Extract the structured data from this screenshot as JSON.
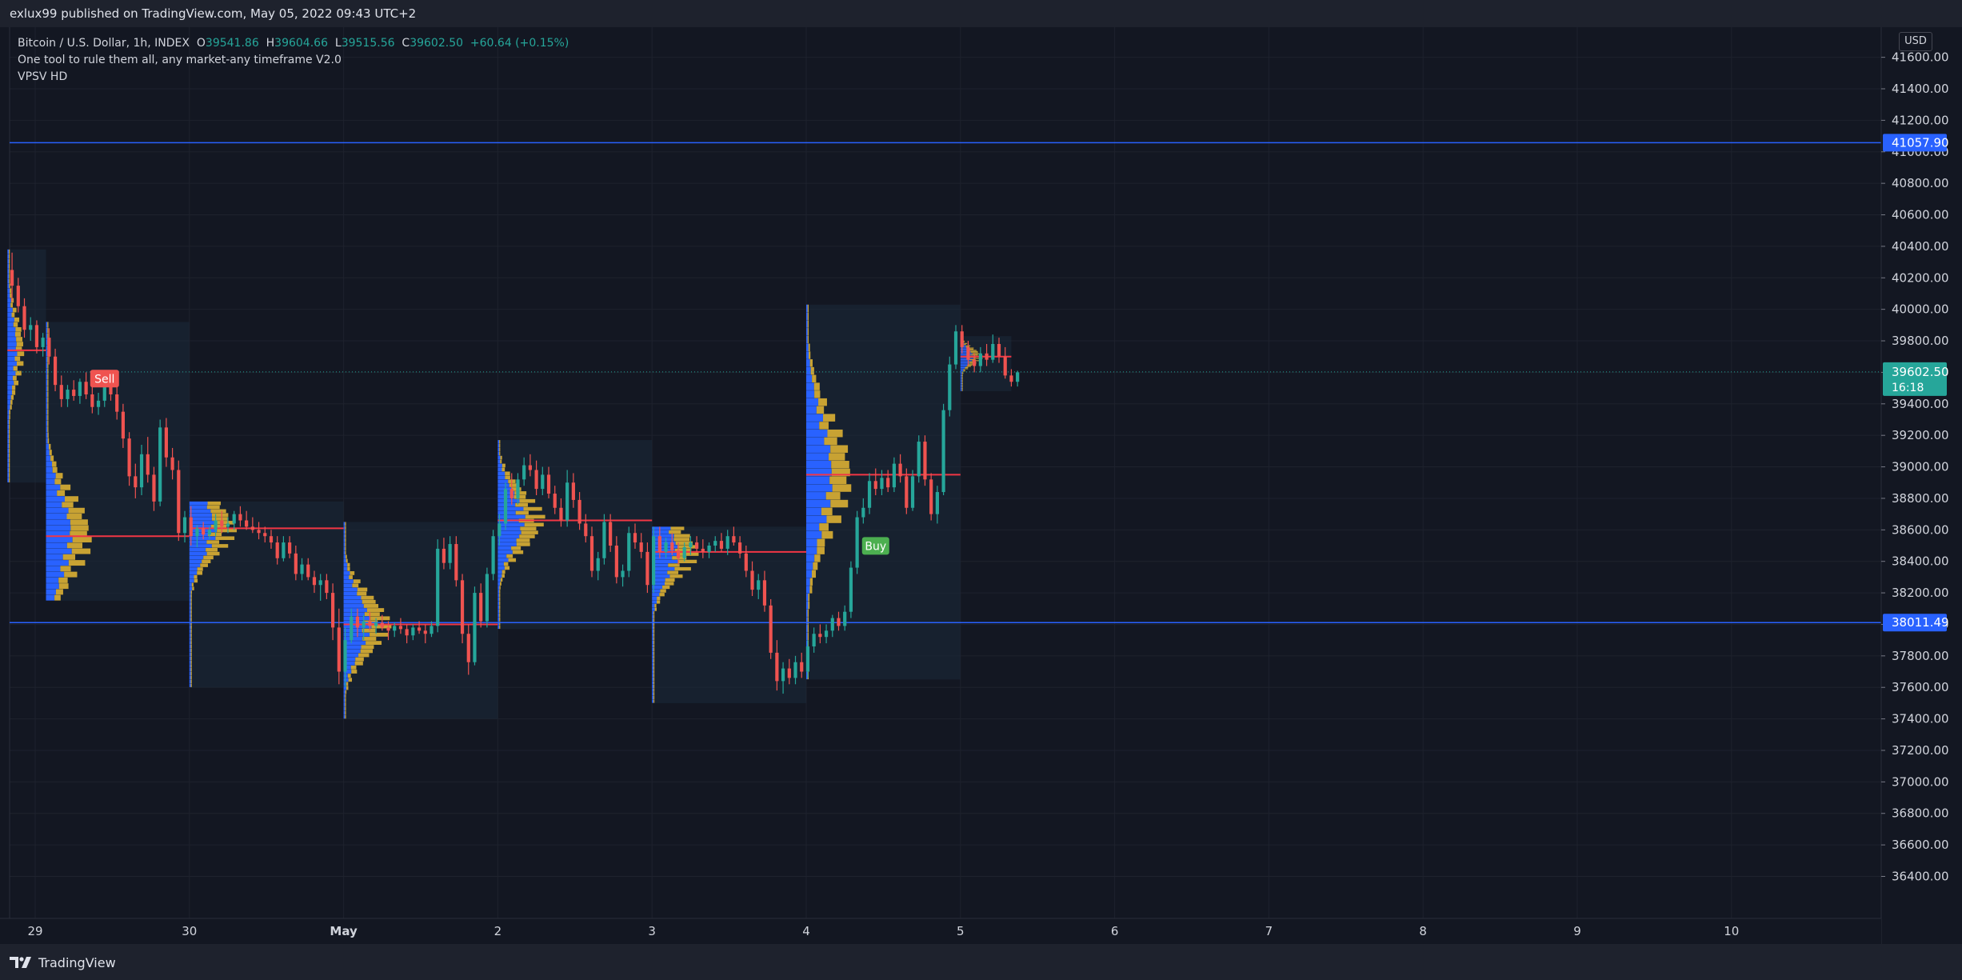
{
  "header": {
    "published_text": "exlux99 published on TradingView.com, May 05, 2022 09:43 UTC+2"
  },
  "footer": {
    "brand": "TradingView"
  },
  "currency_button": "USD",
  "legend": {
    "symbol": "Bitcoin / U.S. Dollar, 1h, INDEX",
    "o_label": "O",
    "o_value": "39541.86",
    "h_label": "H",
    "h_value": "39604.66",
    "l_label": "L",
    "l_value": "39515.56",
    "c_label": "C",
    "c_value": "39602.50",
    "change": "+60.64 (+0.15%)",
    "indicator_1": "One tool to rule them all, any market-any timeframe V2.0",
    "indicator_2": "VPSV HD"
  },
  "colors": {
    "background": "#131722",
    "grid": "#1e222d",
    "up": "#26a69a",
    "down": "#ef5350",
    "level_line": "#2962ff",
    "poc_line": "#f23645",
    "profile_box": "#1c2a3a",
    "volume_up": "#2962ff",
    "volume_down": "#c8a233",
    "buy_badge": "#4caf50",
    "sell_badge": "#ef5350",
    "last_price_badge": "#26a69a"
  },
  "chart_data": {
    "type": "candlestick",
    "title": "Bitcoin / U.S. Dollar, 1h, INDEX",
    "ylim": [
      36300,
      41800
    ],
    "y_ticks": [
      "41600.00",
      "41400.00",
      "41200.00",
      "41000.00",
      "40800.00",
      "40600.00",
      "40400.00",
      "40200.00",
      "40000.00",
      "39800.00",
      "39600.00",
      "39400.00",
      "39200.00",
      "39000.00",
      "38800.00",
      "38600.00",
      "38400.00",
      "38200.00",
      "38000.00",
      "37800.00",
      "37600.00",
      "37400.00",
      "37200.00",
      "37000.00",
      "36800.00",
      "36600.00",
      "36400.00"
    ],
    "x_ticks": [
      {
        "label": "29",
        "day": 0
      },
      {
        "label": "30",
        "day": 1
      },
      {
        "label": "May",
        "day": 2
      },
      {
        "label": "2",
        "day": 3
      },
      {
        "label": "3",
        "day": 4
      },
      {
        "label": "4",
        "day": 5
      },
      {
        "label": "5",
        "day": 6
      },
      {
        "label": "6",
        "day": 7
      },
      {
        "label": "7",
        "day": 8
      },
      {
        "label": "8",
        "day": 9
      },
      {
        "label": "9",
        "day": 10
      },
      {
        "label": "10",
        "day": 11
      }
    ],
    "price_levels": [
      {
        "value": 41057.9,
        "label": "41057.90"
      },
      {
        "value": 38011.49,
        "label": "38011.49"
      }
    ],
    "last_price": {
      "value": 39602.5,
      "label": "39602.50",
      "countdown": "16:18"
    },
    "signals": [
      {
        "type": "Sell",
        "label": "Sell",
        "day": 0.45,
        "price": 39550
      },
      {
        "type": "Buy",
        "label": "Buy",
        "day": 5.45,
        "price": 38620
      }
    ],
    "sessions": [
      {
        "start": -0.18,
        "end": 0.07,
        "low": 38900,
        "high": 40380,
        "poc": 39740
      },
      {
        "start": 0.07,
        "end": 1.0,
        "low": 38150,
        "high": 39920,
        "poc": 38560
      },
      {
        "start": 1.0,
        "end": 2.0,
        "low": 37600,
        "high": 38780,
        "poc": 38610
      },
      {
        "start": 2.0,
        "end": 3.0,
        "low": 37400,
        "high": 38650,
        "poc": 38000
      },
      {
        "start": 3.0,
        "end": 4.0,
        "low": 37970,
        "high": 39170,
        "poc": 38660
      },
      {
        "start": 4.0,
        "end": 5.0,
        "low": 37500,
        "high": 38620,
        "poc": 38460
      },
      {
        "start": 5.0,
        "end": 6.0,
        "low": 37650,
        "high": 40030,
        "poc": 38950
      },
      {
        "start": 6.0,
        "end": 6.33,
        "low": 39480,
        "high": 39830,
        "poc": 39700
      }
    ],
    "candles": [
      [
        -0.15,
        40250,
        40360,
        40050,
        40150
      ],
      [
        -0.11,
        40150,
        40200,
        39980,
        40020
      ],
      [
        -0.07,
        40020,
        40070,
        39820,
        39870
      ],
      [
        -0.03,
        39870,
        39950,
        39800,
        39900
      ],
      [
        0.01,
        39900,
        39930,
        39720,
        39760
      ],
      [
        0.05,
        39760,
        39850,
        39700,
        39820
      ],
      [
        0.09,
        39820,
        39880,
        39650,
        39700
      ],
      [
        0.13,
        39700,
        39750,
        39480,
        39520
      ],
      [
        0.17,
        39520,
        39580,
        39380,
        39430
      ],
      [
        0.21,
        39430,
        39520,
        39380,
        39490
      ],
      [
        0.25,
        39490,
        39550,
        39420,
        39450
      ],
      [
        0.29,
        39450,
        39560,
        39400,
        39540
      ],
      [
        0.33,
        39540,
        39600,
        39430,
        39460
      ],
      [
        0.37,
        39460,
        39520,
        39340,
        39380
      ],
      [
        0.41,
        39380,
        39470,
        39330,
        39420
      ],
      [
        0.45,
        39420,
        39600,
        39380,
        39550
      ],
      [
        0.49,
        39550,
        39600,
        39420,
        39460
      ],
      [
        0.53,
        39460,
        39520,
        39300,
        39350
      ],
      [
        0.57,
        39350,
        39400,
        39120,
        39180
      ],
      [
        0.61,
        39180,
        39220,
        38880,
        38940
      ],
      [
        0.65,
        38940,
        39020,
        38800,
        38870
      ],
      [
        0.69,
        38870,
        39140,
        38820,
        39080
      ],
      [
        0.73,
        39080,
        39190,
        38900,
        38950
      ],
      [
        0.77,
        38950,
        39000,
        38720,
        38780
      ],
      [
        0.81,
        38780,
        39300,
        38750,
        39250
      ],
      [
        0.85,
        39250,
        39310,
        39000,
        39060
      ],
      [
        0.89,
        39060,
        39120,
        38920,
        38980
      ],
      [
        0.93,
        38980,
        39040,
        38530,
        38580
      ],
      [
        0.97,
        38580,
        38720,
        38520,
        38680
      ],
      [
        1.01,
        38680,
        38750,
        38500,
        38560
      ],
      [
        1.05,
        38560,
        38630,
        38490,
        38610
      ],
      [
        1.09,
        38610,
        38650,
        38540,
        38570
      ],
      [
        1.13,
        38570,
        38620,
        38540,
        38600
      ],
      [
        1.17,
        38600,
        38700,
        38560,
        38660
      ],
      [
        1.21,
        38660,
        38720,
        38580,
        38620
      ],
      [
        1.25,
        38620,
        38680,
        38580,
        38640
      ],
      [
        1.29,
        38640,
        38720,
        38600,
        38700
      ],
      [
        1.33,
        38700,
        38750,
        38620,
        38660
      ],
      [
        1.37,
        38660,
        38720,
        38600,
        38620
      ],
      [
        1.41,
        38620,
        38680,
        38580,
        38600
      ],
      [
        1.45,
        38600,
        38650,
        38540,
        38580
      ],
      [
        1.49,
        38580,
        38620,
        38520,
        38560
      ],
      [
        1.53,
        38560,
        38600,
        38480,
        38520
      ],
      [
        1.57,
        38520,
        38560,
        38380,
        38420
      ],
      [
        1.61,
        38420,
        38560,
        38400,
        38520
      ],
      [
        1.65,
        38520,
        38560,
        38420,
        38450
      ],
      [
        1.69,
        38450,
        38500,
        38280,
        38320
      ],
      [
        1.73,
        38320,
        38420,
        38280,
        38380
      ],
      [
        1.77,
        38380,
        38420,
        38280,
        38300
      ],
      [
        1.81,
        38300,
        38340,
        38200,
        38250
      ],
      [
        1.85,
        38250,
        38320,
        38150,
        38280
      ],
      [
        1.89,
        38280,
        38320,
        38160,
        38200
      ],
      [
        1.93,
        38200,
        38260,
        37900,
        37980
      ],
      [
        1.97,
        37980,
        38100,
        37620,
        37700
      ],
      [
        2.01,
        37700,
        37980,
        37600,
        37900
      ],
      [
        2.05,
        37900,
        38100,
        37880,
        38050
      ],
      [
        2.09,
        38050,
        38100,
        37920,
        37980
      ],
      [
        2.13,
        37980,
        38060,
        37900,
        38020
      ],
      [
        2.17,
        38020,
        38080,
        37960,
        37990
      ],
      [
        2.21,
        37990,
        38040,
        37940,
        38010
      ],
      [
        2.25,
        38010,
        38060,
        37960,
        37980
      ],
      [
        2.29,
        37980,
        38020,
        37900,
        37960
      ],
      [
        2.33,
        37960,
        38010,
        37920,
        37990
      ],
      [
        2.37,
        37990,
        38040,
        37940,
        37970
      ],
      [
        2.41,
        37970,
        38000,
        37880,
        37930
      ],
      [
        2.45,
        37930,
        38000,
        37900,
        37980
      ],
      [
        2.49,
        37980,
        38020,
        37940,
        37960
      ],
      [
        2.53,
        37960,
        38000,
        37880,
        37940
      ],
      [
        2.57,
        37940,
        38020,
        37920,
        37990
      ],
      [
        2.61,
        37990,
        38540,
        37950,
        38480
      ],
      [
        2.65,
        38480,
        38550,
        38350,
        38390
      ],
      [
        2.69,
        38390,
        38560,
        38350,
        38510
      ],
      [
        2.73,
        38510,
        38560,
        38240,
        38280
      ],
      [
        2.77,
        38280,
        38320,
        37880,
        37940
      ],
      [
        2.81,
        37940,
        38000,
        37680,
        37760
      ],
      [
        2.85,
        37760,
        38240,
        37740,
        38200
      ],
      [
        2.89,
        38200,
        38260,
        37980,
        38020
      ],
      [
        2.93,
        38020,
        38360,
        37980,
        38320
      ],
      [
        2.97,
        38320,
        38600,
        38280,
        38560
      ],
      [
        3.01,
        38560,
        38700,
        38500,
        38640
      ],
      [
        3.05,
        38640,
        38900,
        38600,
        38860
      ],
      [
        3.09,
        38860,
        38960,
        38760,
        38800
      ],
      [
        3.13,
        38800,
        38960,
        38760,
        38920
      ],
      [
        3.17,
        38920,
        39060,
        38880,
        39010
      ],
      [
        3.21,
        39010,
        39080,
        38940,
        38980
      ],
      [
        3.25,
        38980,
        39040,
        38820,
        38860
      ],
      [
        3.29,
        38860,
        39000,
        38820,
        38950
      ],
      [
        3.33,
        38950,
        39000,
        38800,
        38830
      ],
      [
        3.37,
        38830,
        38880,
        38700,
        38740
      ],
      [
        3.41,
        38740,
        38800,
        38620,
        38660
      ],
      [
        3.45,
        38660,
        38980,
        38620,
        38900
      ],
      [
        3.49,
        38900,
        38960,
        38740,
        38790
      ],
      [
        3.53,
        38790,
        38840,
        38600,
        38640
      ],
      [
        3.57,
        38640,
        38700,
        38520,
        38560
      ],
      [
        3.61,
        38560,
        38620,
        38300,
        38340
      ],
      [
        3.65,
        38340,
        38460,
        38280,
        38420
      ],
      [
        3.69,
        38420,
        38700,
        38380,
        38650
      ],
      [
        3.73,
        38650,
        38700,
        38460,
        38500
      ],
      [
        3.77,
        38500,
        38560,
        38260,
        38300
      ],
      [
        3.81,
        38300,
        38380,
        38240,
        38340
      ],
      [
        3.85,
        38340,
        38620,
        38300,
        38580
      ],
      [
        3.89,
        38580,
        38640,
        38480,
        38520
      ],
      [
        3.93,
        38520,
        38580,
        38420,
        38460
      ],
      [
        3.97,
        38460,
        38520,
        38200,
        38250
      ],
      [
        4.01,
        38250,
        38620,
        38200,
        38560
      ],
      [
        4.05,
        38560,
        38620,
        38420,
        38460
      ],
      [
        4.09,
        38460,
        38550,
        38420,
        38520
      ],
      [
        4.13,
        38520,
        38580,
        38440,
        38470
      ],
      [
        4.17,
        38470,
        38520,
        38380,
        38420
      ],
      [
        4.21,
        38420,
        38520,
        38400,
        38490
      ],
      [
        4.25,
        38490,
        38560,
        38440,
        38520
      ],
      [
        4.29,
        38520,
        38560,
        38460,
        38480
      ],
      [
        4.33,
        38480,
        38540,
        38420,
        38460
      ],
      [
        4.37,
        38460,
        38520,
        38420,
        38500
      ],
      [
        4.41,
        38500,
        38560,
        38460,
        38530
      ],
      [
        4.45,
        38530,
        38580,
        38460,
        38480
      ],
      [
        4.49,
        38480,
        38600,
        38440,
        38560
      ],
      [
        4.53,
        38560,
        38620,
        38500,
        38520
      ],
      [
        4.57,
        38520,
        38560,
        38420,
        38450
      ],
      [
        4.61,
        38450,
        38500,
        38300,
        38340
      ],
      [
        4.65,
        38340,
        38400,
        38180,
        38220
      ],
      [
        4.69,
        38220,
        38320,
        38160,
        38280
      ],
      [
        4.73,
        38280,
        38340,
        38080,
        38120
      ],
      [
        4.77,
        38120,
        38160,
        37780,
        37820
      ],
      [
        4.81,
        37820,
        37900,
        37580,
        37640
      ],
      [
        4.85,
        37640,
        37760,
        37560,
        37720
      ],
      [
        4.89,
        37720,
        37780,
        37620,
        37660
      ],
      [
        4.93,
        37660,
        37800,
        37620,
        37760
      ],
      [
        4.97,
        37760,
        37820,
        37660,
        37700
      ],
      [
        5.01,
        37700,
        37900,
        37660,
        37860
      ],
      [
        5.05,
        37860,
        37980,
        37820,
        37940
      ],
      [
        5.09,
        37940,
        38000,
        37880,
        37920
      ],
      [
        5.13,
        37920,
        38000,
        37880,
        37960
      ],
      [
        5.17,
        37960,
        38060,
        37920,
        38040
      ],
      [
        5.21,
        38040,
        38080,
        37960,
        37990
      ],
      [
        5.25,
        37990,
        38120,
        37960,
        38080
      ],
      [
        5.29,
        38080,
        38400,
        38040,
        38360
      ],
      [
        5.33,
        38360,
        38720,
        38320,
        38680
      ],
      [
        5.37,
        38680,
        38800,
        38640,
        38740
      ],
      [
        5.41,
        38740,
        38960,
        38700,
        38910
      ],
      [
        5.45,
        38910,
        38990,
        38820,
        38860
      ],
      [
        5.49,
        38860,
        38980,
        38820,
        38930
      ],
      [
        5.53,
        38930,
        38980,
        38840,
        38870
      ],
      [
        5.57,
        38870,
        39060,
        38840,
        39020
      ],
      [
        5.61,
        39020,
        39080,
        38900,
        38940
      ],
      [
        5.65,
        38940,
        38990,
        38700,
        38740
      ],
      [
        5.69,
        38740,
        38980,
        38720,
        38940
      ],
      [
        5.73,
        38940,
        39200,
        38900,
        39160
      ],
      [
        5.77,
        39160,
        39200,
        38880,
        38920
      ],
      [
        5.81,
        38920,
        38960,
        38660,
        38700
      ],
      [
        5.85,
        38700,
        38880,
        38640,
        38840
      ],
      [
        5.89,
        38840,
        39400,
        38820,
        39360
      ],
      [
        5.93,
        39360,
        39700,
        39320,
        39650
      ],
      [
        5.97,
        39650,
        39900,
        39620,
        39860
      ],
      [
        6.01,
        39860,
        39900,
        39720,
        39760
      ],
      [
        6.05,
        39760,
        39800,
        39640,
        39680
      ],
      [
        6.09,
        39680,
        39720,
        39600,
        39640
      ],
      [
        6.13,
        39640,
        39760,
        39600,
        39720
      ],
      [
        6.17,
        39720,
        39780,
        39640,
        39680
      ],
      [
        6.21,
        39680,
        39840,
        39660,
        39780
      ],
      [
        6.25,
        39780,
        39820,
        39660,
        39700
      ],
      [
        6.29,
        39700,
        39760,
        39560,
        39580
      ],
      [
        6.33,
        39580,
        39620,
        39510,
        39540
      ],
      [
        6.37,
        39540,
        39610,
        39510,
        39600
      ]
    ]
  }
}
